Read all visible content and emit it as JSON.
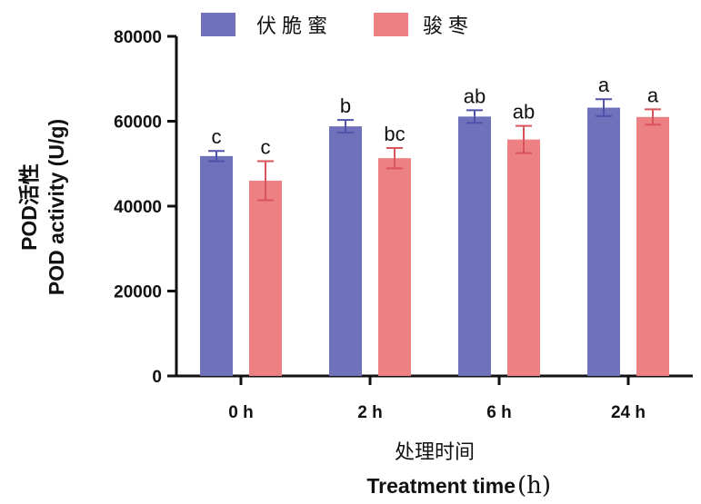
{
  "chart_data": {
    "type": "bar",
    "categories": [
      "0 h",
      "2 h",
      "6 h",
      "24 h"
    ],
    "series": [
      {
        "name": "伏脆蜜",
        "color": "#6f72bb",
        "values": [
          51800,
          58800,
          61100,
          63200
        ],
        "errors": [
          1200,
          1500,
          1500,
          2000
        ],
        "labels": [
          "c",
          "b",
          "ab",
          "a"
        ]
      },
      {
        "name": "骏枣",
        "color": "#ed8082",
        "values": [
          46000,
          51300,
          55700,
          61000
        ],
        "errors": [
          4600,
          2400,
          3200,
          1800
        ],
        "labels": [
          "c",
          "bc",
          "ab",
          "a"
        ]
      }
    ],
    "ylim": [
      0,
      80000
    ],
    "yticks": [
      0,
      20000,
      40000,
      60000,
      80000
    ],
    "ylabel_cn": "POD活性",
    "ylabel": "POD activity (U/g)",
    "xlabel_cn": "处理时间",
    "xlabel": "Treatment time",
    "xlabel_unit": "(h)",
    "legend": "top",
    "grid": false
  }
}
